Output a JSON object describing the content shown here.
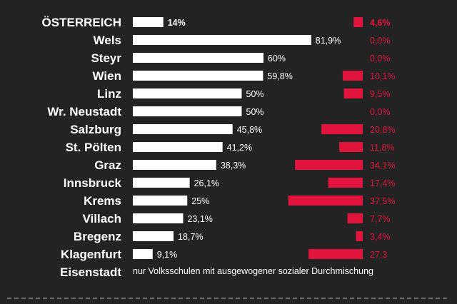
{
  "chart_data": {
    "type": "bar",
    "categories": [
      "ÖSTERREICH",
      "Wels",
      "Steyr",
      "Wien",
      "Linz",
      "Wr. Neustadt",
      "Salzburg",
      "St. Pölten",
      "Graz",
      "Innsbruck",
      "Krems",
      "Villach",
      "Bregenz",
      "Klagenfurt",
      "Eisenstadt"
    ],
    "series": [
      {
        "values": [
          14,
          81.9,
          60,
          59.8,
          50,
          50,
          45.8,
          41.2,
          38.3,
          26.1,
          25,
          23.1,
          18.7,
          9.1,
          null
        ],
        "labels": [
          "14%",
          "81,9%",
          "60%",
          "59,8%",
          "50%",
          "50%",
          "45,8%",
          "41,2%",
          "38,3%",
          "26,1%",
          "25%",
          "23,1%",
          "18,7%",
          "9,1%",
          ""
        ],
        "color": "#ffffff"
      },
      {
        "values": [
          4.6,
          0.0,
          0.0,
          10.1,
          9.5,
          0.0,
          20.8,
          11.8,
          34.1,
          17.4,
          37.5,
          7.7,
          3.4,
          27.3,
          null
        ],
        "labels": [
          "4,6%",
          "0,0%",
          "0,0%",
          "10,1%",
          "9,5%",
          "0,0%",
          "20,8%",
          "11,8%",
          "34,1%",
          "17,4%",
          "37,5%",
          "7,7%",
          "3,4%",
          "27,3",
          ""
        ],
        "color": "#e0143c"
      }
    ],
    "note": "nur Volksschulen mit ausgewogener sozialer Durchmischung",
    "background": "#232323"
  }
}
